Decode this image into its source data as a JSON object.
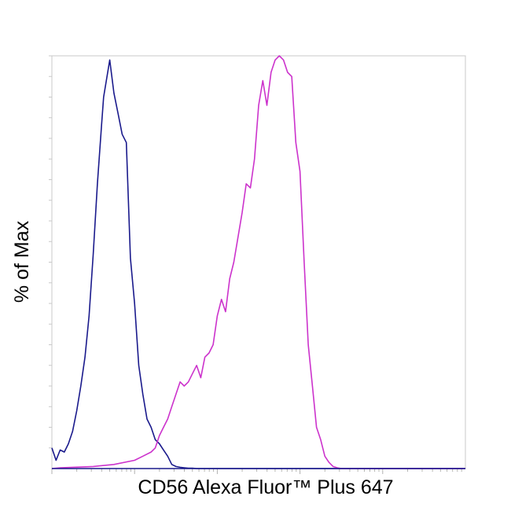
{
  "chart_data": {
    "type": "line",
    "title": "",
    "xlabel": "CD56 Alexa Fluor™ Plus 647",
    "ylabel": "% of Max",
    "xscale": "log",
    "xlim": [
      0,
      100
    ],
    "ylim": [
      0,
      100
    ],
    "grid": false,
    "legend": "none",
    "series": [
      {
        "color": "#1a1a8c",
        "x": [
          0.0,
          1.0,
          2.0,
          3.0,
          4.0,
          5.0,
          6.0,
          7.0,
          8.0,
          9.0,
          10.0,
          11.0,
          12.0,
          12.5,
          13.0,
          14.0,
          15.0,
          16.0,
          17.0,
          18.0,
          19.0,
          20.0,
          21.0,
          22.0,
          23.0,
          24.0,
          25.0,
          26.0,
          27.0,
          28.0,
          29.0,
          30.0,
          31.0,
          32.0,
          33.0,
          34.0,
          35.0,
          36.0,
          37.0,
          38.0,
          39.0,
          40.0,
          42.0,
          45.0,
          50.0,
          60.0,
          80.0,
          100.0
        ],
        "y": [
          5,
          2,
          4.5,
          4,
          6,
          9,
          14,
          20,
          27,
          37,
          52,
          69,
          83,
          90,
          93,
          99,
          91,
          86,
          81,
          79,
          51,
          40,
          25,
          18,
          12,
          10,
          7,
          6,
          4.5,
          3,
          1,
          0.5,
          0.3,
          0.2,
          0.1,
          0.1,
          0,
          0,
          0,
          0,
          0,
          0,
          0,
          0,
          0,
          0,
          0,
          0
        ]
      },
      {
        "color": "#cc33cc",
        "x": [
          0.0,
          2.0,
          5.0,
          10.0,
          15.0,
          20.0,
          22.0,
          24.0,
          25.0,
          26.0,
          27.0,
          28.0,
          29.0,
          30.0,
          31.0,
          32.0,
          33.0,
          34.0,
          35.0,
          36.0,
          37.0,
          38.0,
          39.0,
          40.0,
          41.0,
          42.0,
          43.0,
          44.0,
          45.0,
          46.0,
          47.0,
          48.0,
          49.0,
          50.0,
          51.0,
          52.0,
          53.0,
          54.0,
          55.0,
          56.0,
          57.0,
          58.0,
          59.0,
          60.0,
          61.0,
          62.0,
          63.0,
          64.0,
          65.0,
          66.0,
          67.0,
          68.0,
          69.0,
          70.0,
          72.0,
          75.0,
          80.0,
          90.0,
          100.0
        ],
        "y": [
          0,
          0.2,
          0.3,
          0.5,
          1,
          2,
          3,
          4,
          5,
          8,
          10,
          12,
          15,
          18,
          21,
          20,
          21,
          23,
          25,
          22,
          27,
          28,
          30,
          37,
          41,
          38,
          46,
          50,
          56,
          62,
          69,
          68,
          75,
          88,
          94,
          88,
          96,
          99,
          100,
          99,
          96,
          95,
          79,
          72,
          50,
          30,
          20,
          10,
          7,
          3,
          1.5,
          0.5,
          0.2,
          0,
          0,
          0,
          0,
          0,
          0
        ]
      }
    ]
  }
}
